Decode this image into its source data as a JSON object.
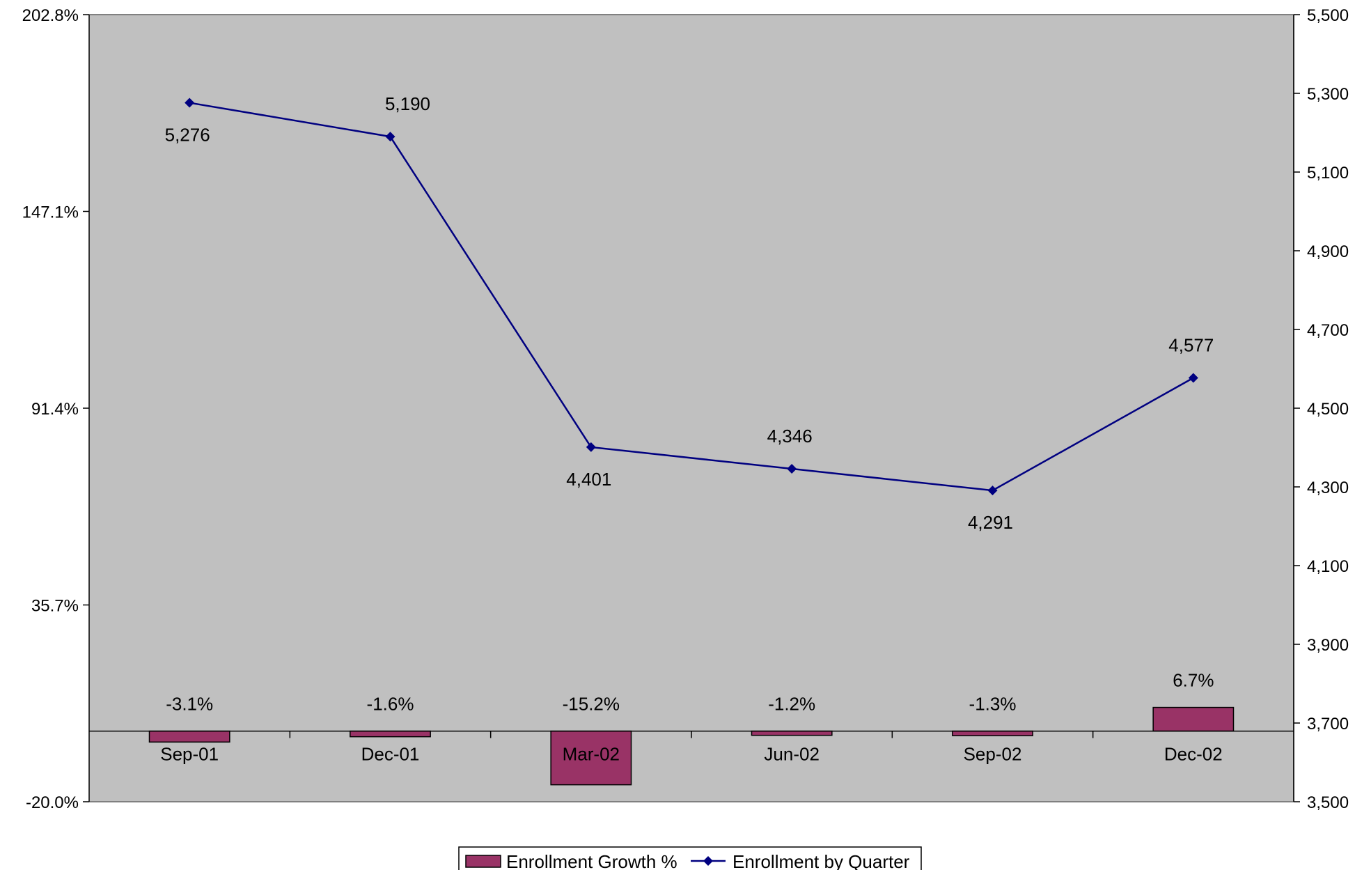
{
  "chart_data": {
    "type": "bar+line",
    "categories": [
      "Sep-01",
      "Dec-01",
      "Mar-02",
      "Jun-02",
      "Sep-02",
      "Dec-02"
    ],
    "series": [
      {
        "name": "Enrollment Growth %",
        "type": "bar",
        "axis": "left",
        "values": [
          -3.1,
          -1.6,
          -15.2,
          -1.2,
          -1.3,
          6.7
        ],
        "labels": [
          "-3.1%",
          "-1.6%",
          "-15.2%",
          "-1.2%",
          "-1.3%",
          "6.7%"
        ]
      },
      {
        "name": "Enrollment by Quarter",
        "type": "line",
        "axis": "right",
        "values": [
          5276,
          5190,
          4401,
          4346,
          4291,
          4577
        ],
        "labels": [
          "5,276",
          "5,190",
          "4,401",
          "4,346",
          "4,291",
          "4,577"
        ]
      }
    ],
    "left_axis": {
      "ylim": [
        -20.0,
        202.8
      ],
      "ticks": [
        -20.0,
        35.7,
        91.4,
        147.1,
        202.8
      ],
      "tick_labels": [
        "-20.0%",
        "35.7%",
        "91.4%",
        "147.1%",
        "202.8%"
      ]
    },
    "right_axis": {
      "ylim": [
        3500,
        5500
      ],
      "ticks": [
        3500,
        3700,
        3900,
        4100,
        4300,
        4500,
        4700,
        4900,
        5100,
        5300,
        5500
      ],
      "tick_labels": [
        "3,500",
        "3,700",
        "3,900",
        "4,100",
        "4,300",
        "4,500",
        "4,700",
        "4,900",
        "5,100",
        "5,300",
        "5,500"
      ]
    },
    "grid": false,
    "legend_position": "bottom-center",
    "colors": {
      "plot_background": "#c0c0c0",
      "bar_fill": "#993366",
      "line": "#000080",
      "axis": "#000000"
    }
  }
}
